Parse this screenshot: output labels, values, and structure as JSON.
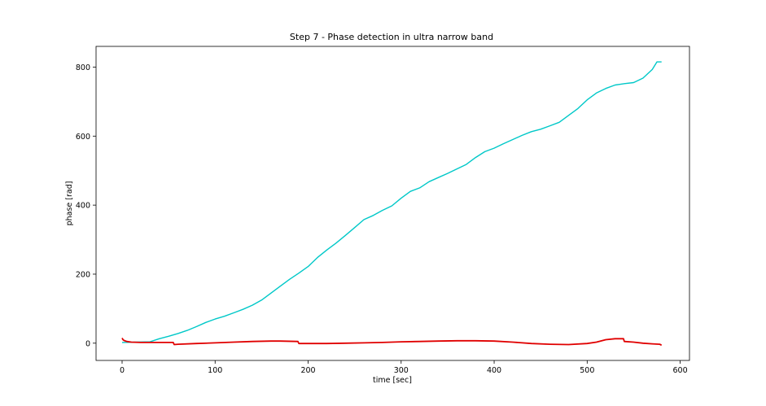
{
  "chart_data": {
    "type": "line",
    "title": "Step 7 - Phase detection in ultra narrow band",
    "xlabel": "time [sec]",
    "ylabel": "phase [rad]",
    "xlim": [
      -28,
      610
    ],
    "ylim": [
      -50,
      860
    ],
    "xticks": [
      0,
      100,
      200,
      300,
      400,
      500,
      600
    ],
    "yticks": [
      0,
      200,
      400,
      600,
      800
    ],
    "grid": false,
    "legend": "none",
    "series": [
      {
        "color": "#00c8c8",
        "x": [
          0,
          15,
          30,
          40,
          50,
          60,
          70,
          80,
          90,
          100,
          110,
          120,
          130,
          140,
          150,
          160,
          170,
          180,
          190,
          200,
          210,
          220,
          230,
          240,
          250,
          260,
          270,
          280,
          290,
          300,
          310,
          320,
          330,
          340,
          350,
          360,
          370,
          380,
          390,
          400,
          410,
          420,
          430,
          440,
          450,
          460,
          470,
          480,
          490,
          500,
          510,
          520,
          530,
          540,
          550,
          560,
          570,
          575,
          580
        ],
        "y": [
          2,
          3,
          4,
          13,
          20,
          28,
          37,
          48,
          60,
          70,
          78,
          88,
          98,
          110,
          125,
          145,
          165,
          185,
          203,
          222,
          248,
          270,
          290,
          312,
          335,
          358,
          370,
          385,
          398,
          420,
          440,
          450,
          468,
          480,
          492,
          505,
          518,
          538,
          555,
          565,
          578,
          590,
          602,
          613,
          620,
          630,
          640,
          660,
          680,
          705,
          725,
          738,
          748,
          752,
          755,
          768,
          793,
          815,
          815
        ]
      },
      {
        "color": "#e00000",
        "x": [
          0,
          1,
          2,
          5,
          10,
          20,
          30,
          40,
          50,
          55,
          56,
          60,
          80,
          100,
          120,
          140,
          160,
          170,
          189,
          190,
          200,
          220,
          240,
          260,
          280,
          300,
          320,
          340,
          360,
          380,
          400,
          420,
          440,
          460,
          480,
          500,
          510,
          520,
          530,
          539,
          540,
          550,
          560,
          570,
          578,
          580
        ],
        "y": [
          15,
          10,
          8,
          5,
          3,
          2,
          2,
          2,
          2,
          2,
          -4,
          -3,
          -1,
          1,
          3,
          5,
          6,
          6,
          5,
          -1,
          -1,
          -1,
          0,
          1,
          2,
          4,
          5,
          6,
          7,
          7,
          6,
          3,
          -1,
          -3,
          -4,
          -1,
          3,
          10,
          13,
          13,
          5,
          3,
          0,
          -2,
          -3,
          -6
        ]
      }
    ]
  }
}
